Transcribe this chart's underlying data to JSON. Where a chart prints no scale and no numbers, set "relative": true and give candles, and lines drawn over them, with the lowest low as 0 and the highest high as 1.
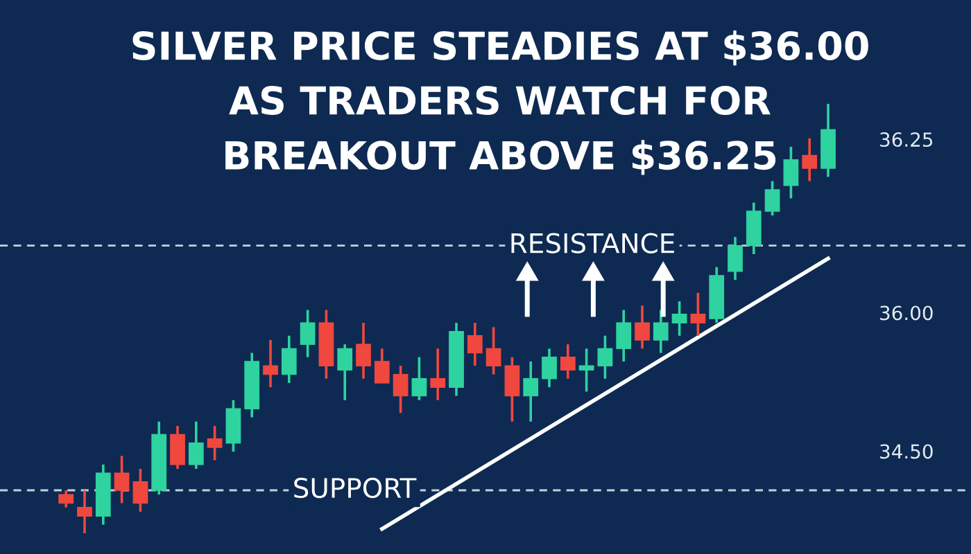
{
  "chart_data": {
    "type": "candlestick",
    "title": "SILVER PRICE STEADIES AT $36.00\nAS TRADERS WATCH FOR\nBREAKOUT ABOVE $36.25",
    "relative": true,
    "categories": [
      null,
      null,
      null,
      null,
      null,
      null,
      null,
      null,
      null,
      null,
      null,
      null,
      null,
      null,
      null,
      null,
      null,
      null,
      null,
      null,
      null,
      null,
      null,
      null,
      null,
      null,
      null,
      null,
      null,
      null,
      null,
      null,
      null,
      null,
      null,
      null,
      null,
      null,
      null,
      null,
      null,
      null
    ],
    "ohlc": [
      [
        0.09,
        0.1,
        0.06,
        0.07
      ],
      [
        0.06,
        0.1,
        0.0,
        0.04
      ],
      [
        0.04,
        0.16,
        0.02,
        0.14
      ],
      [
        0.14,
        0.18,
        0.07,
        0.1
      ],
      [
        0.12,
        0.15,
        0.05,
        0.07
      ],
      [
        0.1,
        0.26,
        0.09,
        0.23
      ],
      [
        0.23,
        0.25,
        0.15,
        0.16
      ],
      [
        0.16,
        0.26,
        0.15,
        0.21
      ],
      [
        0.22,
        0.25,
        0.17,
        0.2
      ],
      [
        0.21,
        0.31,
        0.19,
        0.29
      ],
      [
        0.29,
        0.42,
        0.27,
        0.4
      ],
      [
        0.39,
        0.45,
        0.34,
        0.37
      ],
      [
        0.37,
        0.46,
        0.35,
        0.43
      ],
      [
        0.44,
        0.52,
        0.41,
        0.49
      ],
      [
        0.49,
        0.52,
        0.36,
        0.39
      ],
      [
        0.38,
        0.44,
        0.31,
        0.43
      ],
      [
        0.44,
        0.49,
        0.36,
        0.39
      ],
      [
        0.4,
        0.43,
        0.35,
        0.35
      ],
      [
        0.37,
        0.39,
        0.28,
        0.32
      ],
      [
        0.32,
        0.41,
        0.31,
        0.36
      ],
      [
        0.36,
        0.43,
        0.31,
        0.34
      ],
      [
        0.34,
        0.49,
        0.32,
        0.47
      ],
      [
        0.46,
        0.49,
        0.39,
        0.42
      ],
      [
        0.43,
        0.48,
        0.37,
        0.39
      ],
      [
        0.39,
        0.41,
        0.26,
        0.32
      ],
      [
        0.32,
        0.4,
        0.26,
        0.36
      ],
      [
        0.36,
        0.43,
        0.34,
        0.41
      ],
      [
        0.41,
        0.44,
        0.36,
        0.38
      ],
      [
        0.38,
        0.43,
        0.33,
        0.39
      ],
      [
        0.39,
        0.46,
        0.36,
        0.43
      ],
      [
        0.43,
        0.52,
        0.4,
        0.49
      ],
      [
        0.49,
        0.53,
        0.43,
        0.45
      ],
      [
        0.45,
        0.52,
        0.42,
        0.49
      ],
      [
        0.49,
        0.54,
        0.46,
        0.51
      ],
      [
        0.51,
        0.56,
        0.46,
        0.49
      ],
      [
        0.5,
        0.62,
        0.49,
        0.6
      ],
      [
        0.61,
        0.69,
        0.59,
        0.67
      ],
      [
        0.67,
        0.77,
        0.65,
        0.75
      ],
      [
        0.75,
        0.82,
        0.74,
        0.8
      ],
      [
        0.81,
        0.9,
        0.78,
        0.87
      ],
      [
        0.88,
        0.92,
        0.82,
        0.85
      ],
      [
        0.85,
        1.0,
        0.83,
        0.94
      ]
    ],
    "colors": [
      "#f0483e",
      "#f0483e",
      "#2ed3a0",
      "#f0483e",
      "#f0483e",
      "#2ed3a0",
      "#f0483e",
      "#2ed3a0",
      "#f0483e",
      "#2ed3a0",
      "#2ed3a0",
      "#f0483e",
      "#2ed3a0",
      "#2ed3a0",
      "#f0483e",
      "#2ed3a0",
      "#f0483e",
      "#f0483e",
      "#f0483e",
      "#2ed3a0",
      "#f0483e",
      "#2ed3a0",
      "#f0483e",
      "#f0483e",
      "#f0483e",
      "#2ed3a0",
      "#2ed3a0",
      "#f0483e",
      "#2ed3a0",
      "#2ed3a0",
      "#2ed3a0",
      "#f0483e",
      "#2ed3a0",
      "#2ed3a0",
      "#f0483e",
      "#2ed3a0",
      "#2ed3a0",
      "#2ed3a0",
      "#2ed3a0",
      "#2ed3a0",
      "#f0483e",
      "#2ed3a0"
    ],
    "series": [
      {
        "type": "line",
        "color": "#ffffff",
        "values": [
          null,
          null,
          null,
          null,
          null,
          null,
          null,
          null,
          null,
          null,
          null,
          null,
          null,
          null,
          null,
          null,
          null,
          0.01,
          null,
          null,
          null,
          null,
          null,
          null,
          null,
          null,
          null,
          null,
          null,
          null,
          null,
          null,
          null,
          null,
          null,
          null,
          null,
          null,
          null,
          null,
          null,
          0.64
        ]
      }
    ],
    "ref_lines": [
      {
        "axis": "y",
        "value": 0.67,
        "label": "RESISTANCE",
        "color": "#c8d0dc",
        "line_style": "dashed"
      },
      {
        "axis": "y",
        "value": 0.1,
        "label": "SUPPORT",
        "color": "#c8d0dc",
        "line_style": "dashed"
      }
    ],
    "annotations": [
      "36.25",
      "36.00",
      "34.50"
    ],
    "grid": false
  }
}
